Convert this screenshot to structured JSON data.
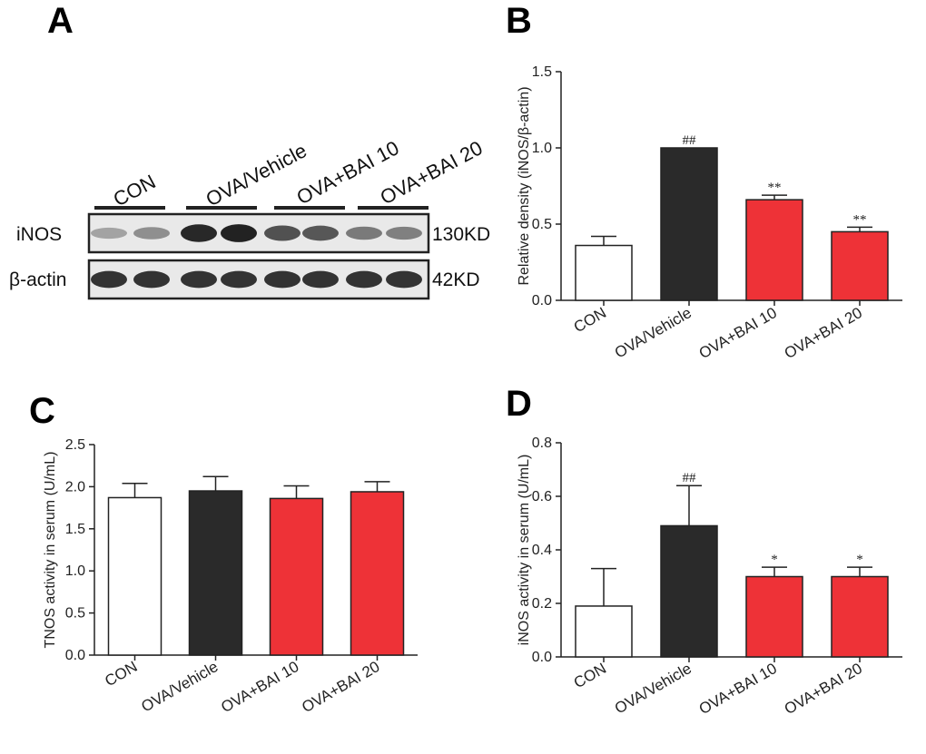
{
  "panels": {
    "A": "A",
    "B": "B",
    "C": "C",
    "D": "D"
  },
  "colors": {
    "con": "#ffffff",
    "vehicle": "#2a2a2a",
    "bai": "#ee3237",
    "axis": "#222222"
  },
  "western_blot": {
    "groups": [
      "CON",
      "OVA/Vehicle",
      "OVA+BAI 10",
      "OVA+BAI 20"
    ],
    "rows": [
      {
        "protein": "iNOS",
        "size": "130KD",
        "intensities": [
          0.35,
          0.45,
          0.95,
          0.98,
          0.75,
          0.72,
          0.55,
          0.52
        ]
      },
      {
        "protein": "β-actin",
        "size": "42KD",
        "intensities": [
          0.9,
          0.9,
          0.9,
          0.9,
          0.9,
          0.9,
          0.9,
          0.9
        ]
      }
    ]
  },
  "chart_data": [
    {
      "panel": "B",
      "type": "bar",
      "title": "",
      "categories": [
        "CON",
        "OVA/Vehicle",
        "OVA+BAI 10",
        "OVA+BAI 20"
      ],
      "values": [
        0.36,
        1.0,
        0.66,
        0.45
      ],
      "errors": [
        0.06,
        0.0,
        0.03,
        0.03
      ],
      "annotations": [
        "",
        "##",
        "**",
        "**"
      ],
      "ylabel": "Relative density (iNOS/β-actin)",
      "xlabel": "",
      "ylim": [
        0,
        1.5
      ],
      "yticks": [
        "0.0",
        "0.5",
        "1.0",
        "1.5"
      ],
      "ytick_values": [
        0,
        0.5,
        1.0,
        1.5
      ]
    },
    {
      "panel": "C",
      "type": "bar",
      "title": "",
      "categories": [
        "CON",
        "OVA/Vehicle",
        "OVA+BAI 10",
        "OVA+BAI 20"
      ],
      "values": [
        1.87,
        1.95,
        1.86,
        1.94
      ],
      "errors": [
        0.17,
        0.17,
        0.15,
        0.12
      ],
      "annotations": [
        "",
        "",
        "",
        ""
      ],
      "ylabel": "TNOS activity in serum (U/mL)",
      "xlabel": "",
      "ylim": [
        0,
        2.5
      ],
      "yticks": [
        "0.0",
        "0.5",
        "1.0",
        "1.5",
        "2.0",
        "2.5"
      ],
      "ytick_values": [
        0,
        0.5,
        1.0,
        1.5,
        2.0,
        2.5
      ]
    },
    {
      "panel": "D",
      "type": "bar",
      "title": "",
      "categories": [
        "CON",
        "OVA/Vehicle",
        "OVA+BAI 10",
        "OVA+BAI 20"
      ],
      "values": [
        0.19,
        0.49,
        0.3,
        0.3
      ],
      "errors": [
        0.14,
        0.15,
        0.035,
        0.035
      ],
      "annotations": [
        "",
        "##",
        "*",
        "*"
      ],
      "ylabel": "iNOS  activity in serum (U/mL)",
      "xlabel": "",
      "ylim": [
        0,
        0.8
      ],
      "yticks": [
        "0.0",
        "0.2",
        "0.4",
        "0.6",
        "0.8"
      ],
      "ytick_values": [
        0,
        0.2,
        0.4,
        0.6,
        0.8
      ]
    }
  ]
}
